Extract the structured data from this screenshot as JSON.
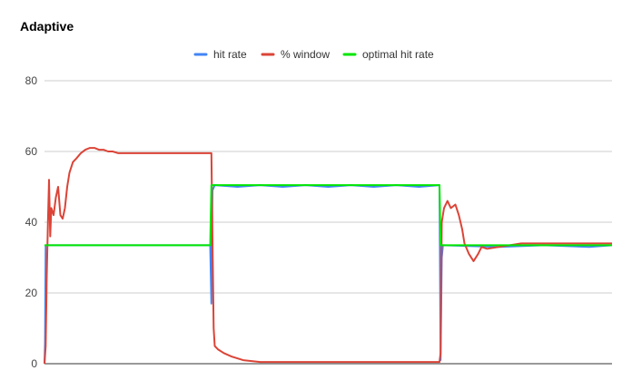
{
  "chart_data": {
    "type": "line",
    "title": "Adaptive",
    "xlabel": "",
    "ylabel": "",
    "ylim": [
      0,
      80
    ],
    "yticks": [
      0,
      20,
      40,
      60,
      80
    ],
    "grid": true,
    "legend_position": "top-center",
    "series": [
      {
        "name": "hit rate",
        "color": "#4285f4",
        "points": [
          [
            0,
            0
          ],
          [
            0.5,
            6
          ],
          [
            1,
            33.5
          ],
          [
            80,
            33.5
          ],
          [
            140,
            33.5
          ],
          [
            146,
            33.5
          ],
          [
            147,
            17
          ],
          [
            148,
            49
          ],
          [
            150,
            50.5
          ],
          [
            170,
            50
          ],
          [
            190,
            50.5
          ],
          [
            210,
            50
          ],
          [
            230,
            50.5
          ],
          [
            250,
            50
          ],
          [
            270,
            50.5
          ],
          [
            290,
            50
          ],
          [
            310,
            50.5
          ],
          [
            330,
            50
          ],
          [
            348,
            50.5
          ],
          [
            349,
            1
          ],
          [
            350,
            30
          ],
          [
            351,
            33.5
          ],
          [
            400,
            33
          ],
          [
            440,
            33.5
          ],
          [
            480,
            33
          ],
          [
            500,
            33.5
          ]
        ]
      },
      {
        "name": "% window",
        "color": "#db4437",
        "points": [
          [
            0,
            0
          ],
          [
            1,
            5
          ],
          [
            2,
            25
          ],
          [
            3,
            40
          ],
          [
            4,
            52
          ],
          [
            5,
            36
          ],
          [
            6,
            44
          ],
          [
            8,
            42
          ],
          [
            10,
            47
          ],
          [
            12,
            50
          ],
          [
            14,
            42
          ],
          [
            16,
            41
          ],
          [
            18,
            44
          ],
          [
            20,
            50
          ],
          [
            22,
            54
          ],
          [
            25,
            57
          ],
          [
            28,
            58
          ],
          [
            32,
            59.5
          ],
          [
            36,
            60.5
          ],
          [
            40,
            61
          ],
          [
            44,
            61
          ],
          [
            48,
            60.5
          ],
          [
            52,
            60.5
          ],
          [
            56,
            60
          ],
          [
            60,
            60
          ],
          [
            65,
            59.5
          ],
          [
            75,
            59.5
          ],
          [
            100,
            59.5
          ],
          [
            125,
            59.5
          ],
          [
            147,
            59.5
          ],
          [
            148,
            35
          ],
          [
            149,
            10
          ],
          [
            150,
            5
          ],
          [
            153,
            4
          ],
          [
            158,
            3
          ],
          [
            165,
            2
          ],
          [
            175,
            1
          ],
          [
            190,
            0.5
          ],
          [
            220,
            0.5
          ],
          [
            300,
            0.5
          ],
          [
            348,
            0.5
          ],
          [
            349,
            3
          ],
          [
            350,
            40
          ],
          [
            352,
            44
          ],
          [
            355,
            46
          ],
          [
            358,
            44
          ],
          [
            362,
            45
          ],
          [
            365,
            42
          ],
          [
            368,
            38
          ],
          [
            370,
            34
          ],
          [
            374,
            31
          ],
          [
            378,
            29
          ],
          [
            382,
            31
          ],
          [
            385,
            33
          ],
          [
            390,
            32.5
          ],
          [
            400,
            33
          ],
          [
            410,
            33.5
          ],
          [
            420,
            34
          ],
          [
            440,
            34
          ],
          [
            460,
            34
          ],
          [
            480,
            34
          ],
          [
            500,
            34
          ]
        ]
      },
      {
        "name": "optimal hit rate",
        "color": "#00e600",
        "points": [
          [
            0,
            33.5
          ],
          [
            146,
            33.5
          ],
          [
            147,
            50.5
          ],
          [
            250,
            50.5
          ],
          [
            348,
            50.5
          ],
          [
            349,
            33.5
          ],
          [
            420,
            33.5
          ],
          [
            500,
            33.5
          ]
        ]
      }
    ]
  }
}
